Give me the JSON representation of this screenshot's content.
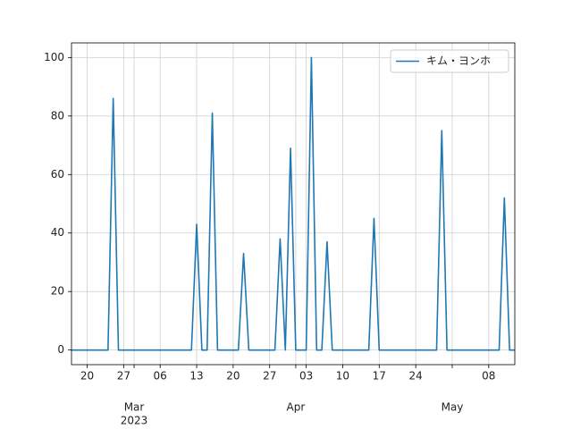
{
  "chart_data": {
    "type": "line",
    "x": [
      "2023-02-17",
      "2023-02-18",
      "2023-02-19",
      "2023-02-20",
      "2023-02-21",
      "2023-02-22",
      "2023-02-23",
      "2023-02-24",
      "2023-02-25",
      "2023-02-26",
      "2023-02-27",
      "2023-02-28",
      "2023-03-01",
      "2023-03-02",
      "2023-03-03",
      "2023-03-04",
      "2023-03-05",
      "2023-03-06",
      "2023-03-07",
      "2023-03-08",
      "2023-03-09",
      "2023-03-10",
      "2023-03-11",
      "2023-03-12",
      "2023-03-13",
      "2023-03-14",
      "2023-03-15",
      "2023-03-16",
      "2023-03-17",
      "2023-03-18",
      "2023-03-19",
      "2023-03-20",
      "2023-03-21",
      "2023-03-22",
      "2023-03-23",
      "2023-03-24",
      "2023-03-25",
      "2023-03-26",
      "2023-03-27",
      "2023-03-28",
      "2023-03-29",
      "2023-03-30",
      "2023-03-31",
      "2023-04-01",
      "2023-04-02",
      "2023-04-03",
      "2023-04-04",
      "2023-04-05",
      "2023-04-06",
      "2023-04-07",
      "2023-04-08",
      "2023-04-09",
      "2023-04-10",
      "2023-04-11",
      "2023-04-12",
      "2023-04-13",
      "2023-04-14",
      "2023-04-15",
      "2023-04-16",
      "2023-04-17",
      "2023-04-18",
      "2023-04-19",
      "2023-04-20",
      "2023-04-21",
      "2023-04-22",
      "2023-04-23",
      "2023-04-24",
      "2023-04-25",
      "2023-04-26",
      "2023-04-27",
      "2023-04-28",
      "2023-04-29",
      "2023-04-30",
      "2023-05-01",
      "2023-05-02",
      "2023-05-03",
      "2023-05-04",
      "2023-05-05",
      "2023-05-06",
      "2023-05-07",
      "2023-05-08",
      "2023-05-09",
      "2023-05-10",
      "2023-05-11",
      "2023-05-12",
      "2023-05-13"
    ],
    "series": [
      {
        "name": "キム・ヨンホ",
        "color": "#1f77b4",
        "values": [
          0,
          0,
          0,
          0,
          0,
          0,
          0,
          0,
          86,
          0,
          0,
          0,
          0,
          0,
          0,
          0,
          0,
          0,
          0,
          0,
          0,
          0,
          0,
          0,
          43,
          0,
          0,
          81,
          0,
          0,
          0,
          0,
          0,
          33,
          0,
          0,
          0,
          0,
          0,
          0,
          38,
          0,
          69,
          0,
          0,
          0,
          100,
          0,
          0,
          37,
          0,
          0,
          0,
          0,
          0,
          0,
          0,
          0,
          45,
          0,
          0,
          0,
          0,
          0,
          0,
          0,
          0,
          0,
          0,
          0,
          0,
          75,
          0,
          0,
          0,
          0,
          0,
          0,
          0,
          0,
          0,
          0,
          0,
          52,
          0,
          0
        ]
      }
    ],
    "xlim": [
      "2023-02-17",
      "2023-05-13"
    ],
    "xticks": [
      {
        "value": "2023-02-20",
        "label": "20"
      },
      {
        "value": "2023-02-27",
        "label": "27"
      },
      {
        "value": "2023-03-06",
        "label": "06"
      },
      {
        "value": "2023-03-13",
        "label": "13"
      },
      {
        "value": "2023-03-20",
        "label": "20"
      },
      {
        "value": "2023-03-27",
        "label": "27"
      },
      {
        "value": "2023-04-03",
        "label": "03"
      },
      {
        "value": "2023-04-10",
        "label": "10"
      },
      {
        "value": "2023-04-17",
        "label": "17"
      },
      {
        "value": "2023-04-24",
        "label": "24"
      },
      {
        "value": "2023-05-08",
        "label": "08"
      }
    ],
    "month_ticks": [
      {
        "value": "2023-03-01",
        "label": "Mar"
      },
      {
        "value": "2023-04-01",
        "label": "Apr"
      },
      {
        "value": "2023-05-01",
        "label": "May"
      }
    ],
    "year_label": {
      "value": "2023-03-01",
      "label": "2023"
    },
    "ylim": [
      -5,
      105
    ],
    "yticks": [
      0,
      20,
      40,
      60,
      80,
      100
    ],
    "grid": true,
    "legend": "upper right"
  }
}
